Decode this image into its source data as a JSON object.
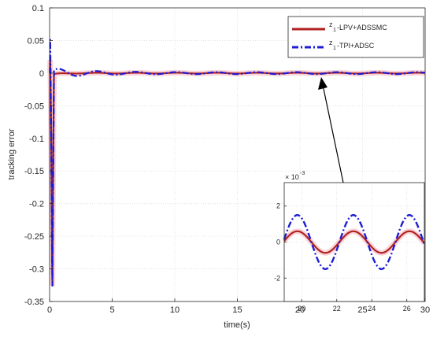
{
  "chart_data": {
    "type": "line",
    "xlabel": "time(s)",
    "ylabel": "tracking error",
    "xlim": [
      0,
      30
    ],
    "ylim": [
      -0.35,
      0.1
    ],
    "xticks": [
      "0",
      "5",
      "10",
      "15",
      "20",
      "25",
      "30"
    ],
    "yticks": [
      "0.1",
      "0.05",
      "0",
      "-0.05",
      "-0.1",
      "-0.15",
      "-0.2",
      "-0.25",
      "-0.3",
      "-0.35"
    ],
    "grid": true,
    "legend_position": "top-right",
    "series": [
      {
        "name": "z₁-LPV+ADSSMC",
        "legend_main": "z",
        "legend_sub": "1",
        "legend_text": "-LPV+ADSSMC",
        "color": "#b22222",
        "style": "solid",
        "description": "fast convergence to ~0 after 0.3 s, then small oscillation of amplitude ~0.0006"
      },
      {
        "name": "z₁-TPI+ADSC",
        "legend_main": "z",
        "legend_sub": "1",
        "legend_text": "-TPI+ADSC",
        "color": "#1c1cd6",
        "style": "dash-dot",
        "description": "spike to ~0.052 and ~-0.34 at t≈0.1 s, decaying oscillation, then steady oscillation of amplitude ~0.0015"
      }
    ],
    "inset": {
      "xlim": [
        19,
        27
      ],
      "ylim": [
        -3.3,
        3.3
      ],
      "xticks": [
        "20",
        "22",
        "24",
        "26"
      ],
      "yticks": [
        "2",
        "0",
        "-2"
      ],
      "multiplier": "× 10",
      "multiplier_exp": "-3",
      "period": 3.2,
      "blue_amplitude": 1.5,
      "red_amplitude": 0.6,
      "phase_peak_time": 22.95
    }
  }
}
